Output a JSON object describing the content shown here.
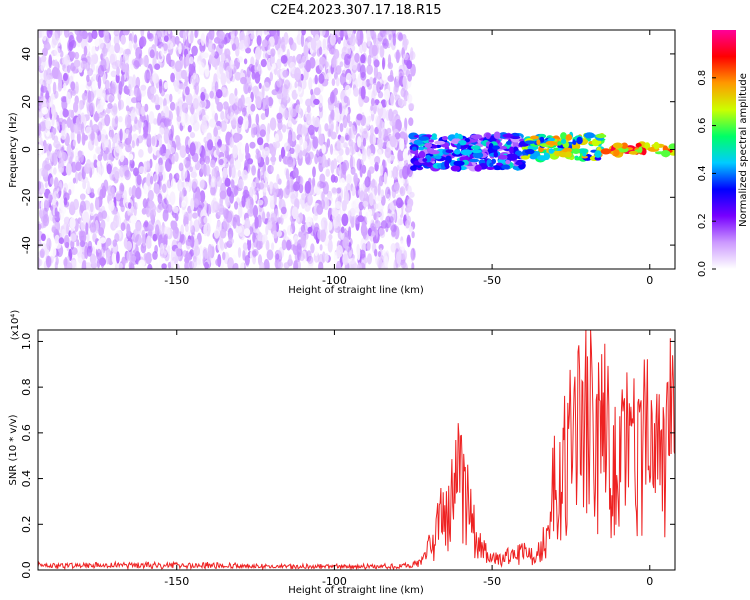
{
  "title": "C2E4.2023.307.17.18.R15",
  "chart_data": [
    {
      "type": "heatmap",
      "xlabel": "Height of straight line (km)",
      "ylabel": "Frequency (Hz)",
      "xlim": [
        -194,
        8
      ],
      "ylim": [
        -50,
        50
      ],
      "x_ticks": [
        -150,
        -100,
        -50,
        0
      ],
      "y_ticks": [
        -40,
        -20,
        0,
        20,
        40
      ],
      "colorbar": {
        "label": "Normalized spectral amplitude",
        "range": [
          0,
          1
        ],
        "ticks": [
          0.0,
          0.2,
          0.4,
          0.6,
          0.8
        ],
        "colormap": [
          "#ffffff",
          "#cc99ff",
          "#7700ff",
          "#0000ff",
          "#00ccff",
          "#00ff66",
          "#ccff00",
          "#ff9900",
          "#ff0000",
          "#ff0099"
        ]
      },
      "regions": [
        {
          "x_from": -194,
          "x_to": -75,
          "y_from": -50,
          "y_to": 50,
          "amplitude_range": [
            0.0,
            0.15
          ],
          "description": "noise"
        },
        {
          "x_from": -75,
          "x_to": -40,
          "y_from": -8,
          "y_to": 6,
          "amplitude_range": [
            0.1,
            0.5
          ]
        },
        {
          "x_from": -40,
          "x_to": -15,
          "y_from": -4,
          "y_to": 6,
          "amplitude_range": [
            0.3,
            0.8
          ]
        },
        {
          "x_from": -15,
          "x_to": 8,
          "y_from": -2,
          "y_to": 2,
          "amplitude_range": [
            0.6,
            0.95
          ]
        }
      ]
    },
    {
      "type": "line",
      "xlabel": "Height of straight line (km)",
      "ylabel": "SNR (10 * v/v)",
      "y_multiplier": "(x10⁴)",
      "xlim": [
        -194,
        8
      ],
      "ylim": [
        0,
        1.05
      ],
      "x_ticks": [
        -150,
        -100,
        -50,
        0
      ],
      "y_ticks": [
        0.0,
        0.2,
        0.4,
        0.6,
        0.8,
        1.0
      ],
      "line_color": "#ee2222",
      "series": [
        {
          "x": [
            -194,
            -180,
            -160,
            -140,
            -120,
            -100,
            -85,
            -75,
            -72,
            -70,
            -68,
            -66,
            -64,
            -62,
            -60,
            -58,
            -56,
            -54,
            -52,
            -50,
            -48,
            -46,
            -44,
            -42,
            -40,
            -38,
            -36,
            -34,
            -32,
            -31,
            -30,
            -28,
            -26,
            -24,
            -22,
            -20,
            -19,
            -18,
            -16,
            -14,
            -12,
            -10,
            -8,
            -6,
            -4,
            -2,
            0,
            2,
            4,
            6,
            8
          ],
          "values": [
            0.02,
            0.02,
            0.02,
            0.02,
            0.015,
            0.015,
            0.015,
            0.02,
            0.04,
            0.1,
            0.16,
            0.22,
            0.28,
            0.35,
            0.45,
            0.3,
            0.18,
            0.1,
            0.07,
            0.05,
            0.05,
            0.05,
            0.06,
            0.07,
            0.07,
            0.08,
            0.09,
            0.11,
            0.13,
            0.3,
            0.4,
            0.45,
            0.5,
            0.55,
            0.6,
            0.7,
            0.9,
            0.6,
            0.55,
            0.6,
            0.5,
            0.55,
            0.5,
            0.55,
            0.55,
            0.6,
            0.55,
            0.5,
            0.55,
            0.6,
            0.75
          ]
        }
      ]
    }
  ]
}
